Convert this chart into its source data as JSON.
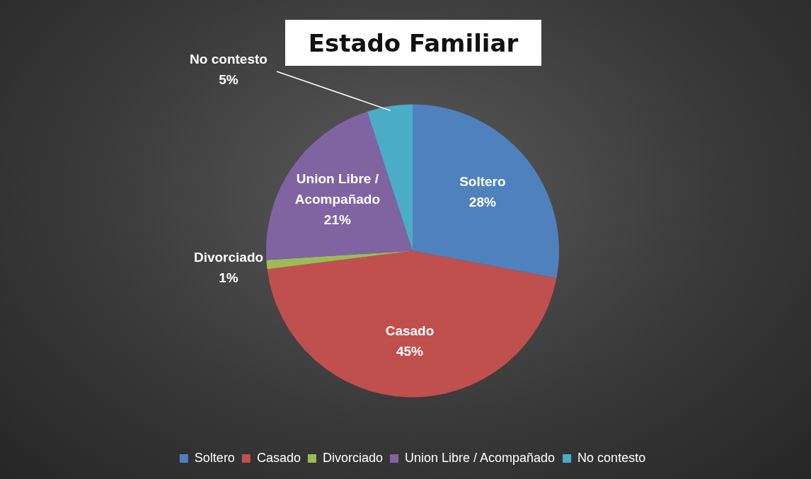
{
  "chart_data": {
    "type": "pie",
    "title": "Estado Familiar",
    "categories": [
      "Soltero",
      "Casado",
      "Divorciado",
      "Union Libre / Acompañado",
      "No contesto"
    ],
    "values": [
      28,
      45,
      1,
      21,
      5
    ],
    "value_labels": [
      "28%",
      "45%",
      "1%",
      "21%",
      "5%"
    ],
    "colors": [
      "#4f81bd",
      "#c0504d",
      "#9bbb59",
      "#8064a2",
      "#4bacc6"
    ],
    "legend": "bottom"
  }
}
